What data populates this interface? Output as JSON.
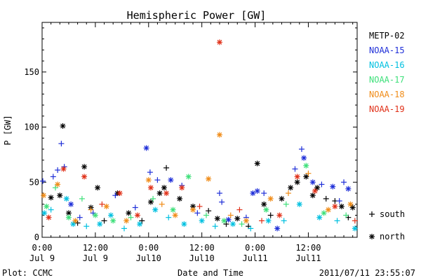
{
  "chart_data": {
    "type": "scatter",
    "title": "Hemispheric Power [GW]",
    "ylabel": "P [GW]",
    "xlabel": "Date and Time",
    "ylim": [
      0,
      195
    ],
    "xlim": [
      "2011-07-09 00:00",
      "2011-07-11 23:00"
    ],
    "yticks": [
      0,
      50,
      100,
      150
    ],
    "xticks": [
      {
        "time": "0:00",
        "date": "Jul 9"
      },
      {
        "time": "12:00",
        "date": "Jul 9"
      },
      {
        "time": "0:00",
        "date": "Jul10"
      },
      {
        "time": "12:00",
        "date": "Jul10"
      },
      {
        "time": "0:00",
        "date": "Jul11"
      },
      {
        "time": "12:00",
        "date": "Jul11"
      }
    ],
    "legend_position": "right",
    "marker_legend": [
      {
        "symbol": "+",
        "label": "south"
      },
      {
        "symbol": "*",
        "label": "north"
      }
    ],
    "series": [
      {
        "name": "METP-02",
        "color": "#000000",
        "points": [
          {
            "x": "2011-07-09 02:00",
            "y": 36,
            "m": "north"
          },
          {
            "x": "2011-07-09 04:00",
            "y": 38,
            "m": "north"
          },
          {
            "x": "2011-07-09 04:40",
            "y": 101,
            "m": "north"
          },
          {
            "x": "2011-07-09 06:00",
            "y": 22,
            "m": "north"
          },
          {
            "x": "2011-07-09 08:00",
            "y": 13,
            "m": "south"
          },
          {
            "x": "2011-07-09 09:30",
            "y": 64,
            "m": "north"
          },
          {
            "x": "2011-07-09 11:00",
            "y": 27,
            "m": "north"
          },
          {
            "x": "2011-07-09 12:30",
            "y": 45,
            "m": "north"
          },
          {
            "x": "2011-07-09 14:00",
            "y": 15,
            "m": "south"
          },
          {
            "x": "2011-07-09 17:00",
            "y": 40,
            "m": "north"
          },
          {
            "x": "2011-07-09 19:30",
            "y": 22,
            "m": "north"
          },
          {
            "x": "2011-07-09 22:30",
            "y": 15,
            "m": "south"
          },
          {
            "x": "2011-07-10 00:30",
            "y": 32,
            "m": "north"
          },
          {
            "x": "2011-07-10 02:30",
            "y": 40,
            "m": "north"
          },
          {
            "x": "2011-07-10 03:30",
            "y": 45,
            "m": "north"
          },
          {
            "x": "2011-07-10 04:00",
            "y": 63,
            "m": "south"
          },
          {
            "x": "2011-07-10 07:00",
            "y": 35,
            "m": "north"
          },
          {
            "x": "2011-07-10 10:00",
            "y": 28,
            "m": "north"
          },
          {
            "x": "2011-07-10 13:30",
            "y": 24,
            "m": "south"
          },
          {
            "x": "2011-07-10 15:30",
            "y": 17,
            "m": "north"
          },
          {
            "x": "2011-07-10 17:30",
            "y": 12,
            "m": "south"
          },
          {
            "x": "2011-07-10 20:00",
            "y": 17,
            "m": "north"
          },
          {
            "x": "2011-07-10 22:30",
            "y": 10,
            "m": "south"
          },
          {
            "x": "2011-07-11 00:30",
            "y": 67,
            "m": "north"
          },
          {
            "x": "2011-07-11 02:00",
            "y": 30,
            "m": "north"
          },
          {
            "x": "2011-07-11 03:30",
            "y": 20,
            "m": "south"
          },
          {
            "x": "2011-07-11 06:00",
            "y": 35,
            "m": "north"
          },
          {
            "x": "2011-07-11 08:00",
            "y": 45,
            "m": "north"
          },
          {
            "x": "2011-07-11 09:30",
            "y": 50,
            "m": "north"
          },
          {
            "x": "2011-07-11 11:30",
            "y": 55,
            "m": "north"
          },
          {
            "x": "2011-07-11 13:00",
            "y": 38,
            "m": "north"
          },
          {
            "x": "2011-07-11 14:00",
            "y": 45,
            "m": "north"
          },
          {
            "x": "2011-07-11 16:00",
            "y": 35,
            "m": "south"
          },
          {
            "x": "2011-07-11 18:00",
            "y": 33,
            "m": "south"
          },
          {
            "x": "2011-07-11 19:30",
            "y": 28,
            "m": "north"
          },
          {
            "x": "2011-07-11 21:00",
            "y": 18,
            "m": "south"
          },
          {
            "x": "2011-07-11 22:00",
            "y": 27,
            "m": "north"
          }
        ]
      },
      {
        "name": "NOAA-15",
        "color": "#1f2fd8",
        "points": [
          {
            "x": "2011-07-09 00:10",
            "y": 51,
            "m": "south"
          },
          {
            "x": "2011-07-09 02:30",
            "y": 55,
            "m": "south"
          },
          {
            "x": "2011-07-09 03:30",
            "y": 61,
            "m": "south"
          },
          {
            "x": "2011-07-09 04:20",
            "y": 85,
            "m": "south"
          },
          {
            "x": "2011-07-09 05:00",
            "y": 64,
            "m": "south"
          },
          {
            "x": "2011-07-09 06:30",
            "y": 30,
            "m": "north"
          },
          {
            "x": "2011-07-09 08:30",
            "y": 18,
            "m": "south"
          },
          {
            "x": "2011-07-09 11:30",
            "y": 22,
            "m": "south"
          },
          {
            "x": "2011-07-09 16:30",
            "y": 38,
            "m": "south"
          },
          {
            "x": "2011-07-09 21:00",
            "y": 27,
            "m": "south"
          },
          {
            "x": "2011-07-09 23:30",
            "y": 81,
            "m": "north"
          },
          {
            "x": "2011-07-10 00:20",
            "y": 59,
            "m": "south"
          },
          {
            "x": "2011-07-10 02:00",
            "y": 52,
            "m": "south"
          },
          {
            "x": "2011-07-10 05:00",
            "y": 52,
            "m": "north"
          },
          {
            "x": "2011-07-10 07:30",
            "y": 47,
            "m": "south"
          },
          {
            "x": "2011-07-10 11:00",
            "y": 22,
            "m": "south"
          },
          {
            "x": "2011-07-10 16:00",
            "y": 40,
            "m": "south"
          },
          {
            "x": "2011-07-10 16:30",
            "y": 32,
            "m": "south"
          },
          {
            "x": "2011-07-10 18:00",
            "y": 16,
            "m": "north"
          },
          {
            "x": "2011-07-10 22:00",
            "y": 18,
            "m": "south"
          },
          {
            "x": "2011-07-10 23:30",
            "y": 40,
            "m": "north"
          },
          {
            "x": "2011-07-11 00:30",
            "y": 42,
            "m": "north"
          },
          {
            "x": "2011-07-11 02:00",
            "y": 40,
            "m": "south"
          },
          {
            "x": "2011-07-11 05:00",
            "y": 8,
            "m": "north"
          },
          {
            "x": "2011-07-11 09:00",
            "y": 62,
            "m": "south"
          },
          {
            "x": "2011-07-11 10:30",
            "y": 80,
            "m": "south"
          },
          {
            "x": "2011-07-11 11:00",
            "y": 72,
            "m": "north"
          },
          {
            "x": "2011-07-11 13:00",
            "y": 50,
            "m": "north"
          },
          {
            "x": "2011-07-11 15:00",
            "y": 48,
            "m": "south"
          },
          {
            "x": "2011-07-11 17:30",
            "y": 46,
            "m": "north"
          },
          {
            "x": "2011-07-11 19:00",
            "y": 33,
            "m": "south"
          },
          {
            "x": "2011-07-11 20:00",
            "y": 50,
            "m": "south"
          },
          {
            "x": "2011-07-11 21:00",
            "y": 44,
            "m": "north"
          }
        ]
      },
      {
        "name": "NOAA-16",
        "color": "#00c0e0",
        "points": [
          {
            "x": "2011-07-09 00:30",
            "y": 22,
            "m": "north"
          },
          {
            "x": "2011-07-09 02:00",
            "y": 25,
            "m": "south"
          },
          {
            "x": "2011-07-09 05:30",
            "y": 35,
            "m": "north"
          },
          {
            "x": "2011-07-09 07:00",
            "y": 12,
            "m": "north"
          },
          {
            "x": "2011-07-09 10:00",
            "y": 10,
            "m": "south"
          },
          {
            "x": "2011-07-09 13:00",
            "y": 12,
            "m": "north"
          },
          {
            "x": "2011-07-09 15:30",
            "y": 20,
            "m": "north"
          },
          {
            "x": "2011-07-09 18:30",
            "y": 8,
            "m": "south"
          },
          {
            "x": "2011-07-09 22:00",
            "y": 12,
            "m": "north"
          },
          {
            "x": "2011-07-10 01:30",
            "y": 25,
            "m": "north"
          },
          {
            "x": "2011-07-10 04:30",
            "y": 18,
            "m": "south"
          },
          {
            "x": "2011-07-10 08:00",
            "y": 12,
            "m": "north"
          },
          {
            "x": "2011-07-10 12:00",
            "y": 15,
            "m": "north"
          },
          {
            "x": "2011-07-10 15:00",
            "y": 10,
            "m": "south"
          },
          {
            "x": "2011-07-10 19:00",
            "y": 12,
            "m": "north"
          },
          {
            "x": "2011-07-10 23:00",
            "y": 8,
            "m": "south"
          },
          {
            "x": "2011-07-11 03:00",
            "y": 15,
            "m": "north"
          },
          {
            "x": "2011-07-11 06:30",
            "y": 15,
            "m": "south"
          },
          {
            "x": "2011-07-11 10:00",
            "y": 30,
            "m": "north"
          },
          {
            "x": "2011-07-11 14:30",
            "y": 18,
            "m": "north"
          },
          {
            "x": "2011-07-11 18:30",
            "y": 15,
            "m": "south"
          },
          {
            "x": "2011-07-11 22:30",
            "y": 8,
            "m": "north"
          }
        ]
      },
      {
        "name": "NOAA-17",
        "color": "#3ee07a",
        "points": [
          {
            "x": "2011-07-09 01:00",
            "y": 28,
            "m": "north"
          },
          {
            "x": "2011-07-09 03:00",
            "y": 45,
            "m": "south"
          },
          {
            "x": "2011-07-09 06:00",
            "y": 18,
            "m": "north"
          },
          {
            "x": "2011-07-09 09:00",
            "y": 35,
            "m": "south"
          },
          {
            "x": "2011-07-09 12:00",
            "y": 20,
            "m": "north"
          },
          {
            "x": "2011-07-09 16:00",
            "y": 15,
            "m": "north"
          },
          {
            "x": "2011-07-09 20:00",
            "y": 18,
            "m": "south"
          },
          {
            "x": "2011-07-10 01:00",
            "y": 35,
            "m": "south"
          },
          {
            "x": "2011-07-10 05:30",
            "y": 25,
            "m": "north"
          },
          {
            "x": "2011-07-10 09:00",
            "y": 55,
            "m": "north"
          },
          {
            "x": "2011-07-10 13:00",
            "y": 20,
            "m": "south"
          },
          {
            "x": "2011-07-10 17:00",
            "y": 15,
            "m": "north"
          },
          {
            "x": "2011-07-10 21:00",
            "y": 12,
            "m": "south"
          },
          {
            "x": "2011-07-11 02:30",
            "y": 25,
            "m": "north"
          },
          {
            "x": "2011-07-11 07:00",
            "y": 30,
            "m": "south"
          },
          {
            "x": "2011-07-11 11:30",
            "y": 65,
            "m": "north"
          },
          {
            "x": "2011-07-11 15:30",
            "y": 22,
            "m": "north"
          },
          {
            "x": "2011-07-11 20:30",
            "y": 20,
            "m": "south"
          }
        ]
      },
      {
        "name": "NOAA-18",
        "color": "#f08c18",
        "points": [
          {
            "x": "2011-07-09 00:20",
            "y": 38,
            "m": "north"
          },
          {
            "x": "2011-07-09 03:30",
            "y": 48,
            "m": "north"
          },
          {
            "x": "2011-07-09 07:30",
            "y": 15,
            "m": "north"
          },
          {
            "x": "2011-07-09 11:00",
            "y": 25,
            "m": "south"
          },
          {
            "x": "2011-07-09 14:30",
            "y": 28,
            "m": "north"
          },
          {
            "x": "2011-07-09 19:00",
            "y": 15,
            "m": "north"
          },
          {
            "x": "2011-07-10 00:00",
            "y": 52,
            "m": "north"
          },
          {
            "x": "2011-07-10 03:00",
            "y": 30,
            "m": "south"
          },
          {
            "x": "2011-07-10 06:00",
            "y": 20,
            "m": "north"
          },
          {
            "x": "2011-07-10 10:00",
            "y": 25,
            "m": "north"
          },
          {
            "x": "2011-07-10 13:30",
            "y": 53,
            "m": "north"
          },
          {
            "x": "2011-07-10 16:00",
            "y": 93,
            "m": "north"
          },
          {
            "x": "2011-07-10 18:30",
            "y": 20,
            "m": "south"
          },
          {
            "x": "2011-07-10 22:00",
            "y": 15,
            "m": "north"
          },
          {
            "x": "2011-07-11 03:30",
            "y": 35,
            "m": "north"
          },
          {
            "x": "2011-07-11 07:30",
            "y": 40,
            "m": "south"
          },
          {
            "x": "2011-07-11 12:00",
            "y": 58,
            "m": "south"
          },
          {
            "x": "2011-07-11 16:30",
            "y": 25,
            "m": "north"
          },
          {
            "x": "2011-07-11 21:30",
            "y": 30,
            "m": "north"
          }
        ]
      },
      {
        "name": "NOAA-19",
        "color": "#e03018",
        "points": [
          {
            "x": "2011-07-09 01:30",
            "y": 18,
            "m": "north"
          },
          {
            "x": "2011-07-09 04:50",
            "y": 62,
            "m": "north"
          },
          {
            "x": "2011-07-09 09:30",
            "y": 55,
            "m": "north"
          },
          {
            "x": "2011-07-09 13:30",
            "y": 30,
            "m": "south"
          },
          {
            "x": "2011-07-09 17:30",
            "y": 40,
            "m": "north"
          },
          {
            "x": "2011-07-09 21:30",
            "y": 20,
            "m": "north"
          },
          {
            "x": "2011-07-10 00:30",
            "y": 45,
            "m": "north"
          },
          {
            "x": "2011-07-10 04:00",
            "y": 40,
            "m": "north"
          },
          {
            "x": "2011-07-10 07:30",
            "y": 45,
            "m": "north"
          },
          {
            "x": "2011-07-10 11:30",
            "y": 28,
            "m": "south"
          },
          {
            "x": "2011-07-10 16:00",
            "y": 177,
            "m": "north"
          },
          {
            "x": "2011-07-10 20:30",
            "y": 25,
            "m": "south"
          },
          {
            "x": "2011-07-11 01:30",
            "y": 15,
            "m": "south"
          },
          {
            "x": "2011-07-11 05:30",
            "y": 20,
            "m": "north"
          },
          {
            "x": "2011-07-11 09:30",
            "y": 55,
            "m": "north"
          },
          {
            "x": "2011-07-11 13:30",
            "y": 42,
            "m": "north"
          },
          {
            "x": "2011-07-11 18:00",
            "y": 28,
            "m": "north"
          },
          {
            "x": "2011-07-11 22:30",
            "y": 15,
            "m": "south"
          }
        ]
      }
    ]
  },
  "footer": {
    "left": "Plot: CCMC",
    "right": "2011/07/11 23:55:07"
  }
}
